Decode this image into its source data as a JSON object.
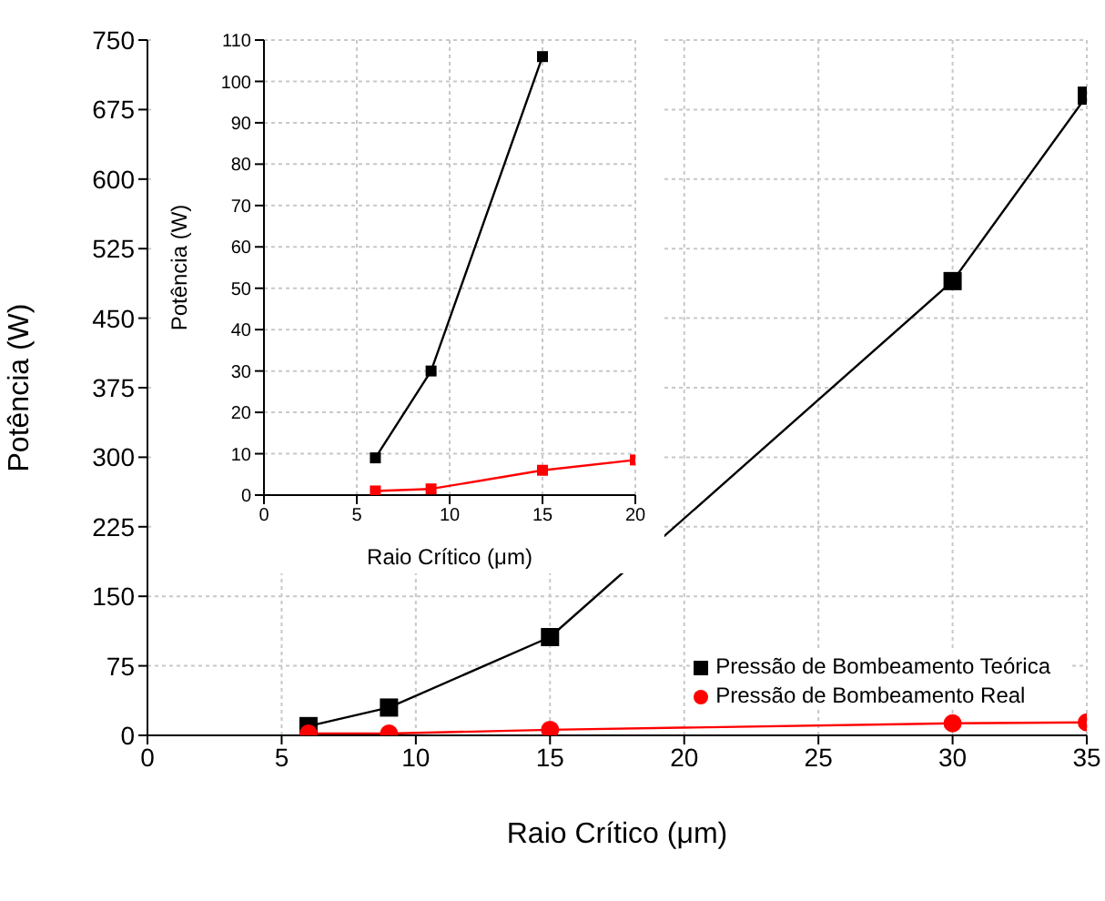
{
  "chart_data": [
    {
      "type": "line",
      "xlabel": "Raio Crítico (μm)",
      "ylabel": "Potência (W)",
      "x": [
        6,
        9,
        15,
        30,
        35
      ],
      "xlim": [
        0,
        35
      ],
      "xticks": [
        0,
        5,
        10,
        15,
        20,
        25,
        30,
        35
      ],
      "ylim": [
        0,
        750
      ],
      "yticks": [
        0,
        75,
        150,
        225,
        300,
        375,
        450,
        525,
        600,
        675,
        750
      ],
      "grid": true,
      "legend": "bottom right",
      "line_style": "solid",
      "series": [
        {
          "name": "Pressão de Bombeamento Teórica",
          "color": "#000000",
          "marker": "square",
          "values": [
            10,
            30,
            106,
            490,
            690
          ]
        },
        {
          "name": "Pressão de Bombeamento Real",
          "color": "#ff0000",
          "marker": "circle",
          "values": [
            2,
            2,
            6,
            13,
            14
          ]
        }
      ]
    },
    {
      "type": "line",
      "xlabel": "Raio Crítico (μm)",
      "ylabel": "Potência (W)",
      "x": [
        6,
        9,
        15,
        20
      ],
      "xlim": [
        0,
        20
      ],
      "xticks": [
        0,
        5,
        10,
        15,
        20
      ],
      "ylim": [
        0,
        110
      ],
      "yticks": [
        0,
        10,
        20,
        30,
        40,
        50,
        60,
        70,
        80,
        90,
        100,
        110
      ],
      "grid": true,
      "marker": "square",
      "line_style": "solid",
      "series": [
        {
          "color": "#000000",
          "values": [
            9,
            30,
            106,
            null
          ]
        },
        {
          "color": "#ff0000",
          "values": [
            1,
            1.5,
            6,
            8.5
          ]
        }
      ]
    }
  ]
}
